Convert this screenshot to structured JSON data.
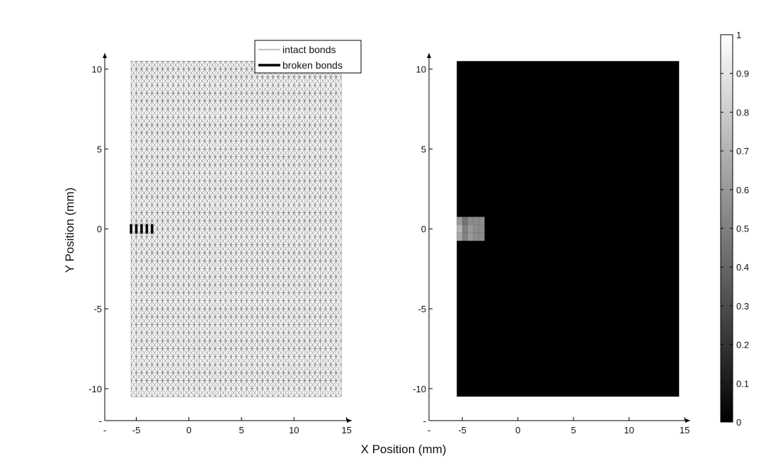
{
  "figure": {
    "xlabel": "X Position (mm)",
    "ylabel": "Y Position (mm)"
  },
  "chart_data": [
    {
      "type": "mesh",
      "panel": "left",
      "xlim": [
        -8,
        15.5
      ],
      "ylim": [
        -12,
        11
      ],
      "xticks": [
        -5,
        0,
        5,
        10,
        15
      ],
      "yticks": [
        -10,
        -5,
        0,
        5,
        10
      ],
      "xtick_labels": [
        "-5",
        "0",
        "5",
        "10",
        "15"
      ],
      "ytick_labels": [
        "-10",
        "-5",
        "0",
        "5",
        "10"
      ],
      "axis_end_labels": {
        "x_min": "-",
        "y_min": "-"
      },
      "mesh": {
        "x_range": [
          -5.5,
          14.5
        ],
        "y_range": [
          -10.5,
          10.5
        ],
        "cols": 40,
        "rows": 42
      },
      "legend": {
        "position": "top-right",
        "entries": [
          {
            "label": "intact bonds",
            "style": "thin",
            "color": "#7f7f7f"
          },
          {
            "label": "broken bonds",
            "style": "thick",
            "color": "#000000"
          }
        ]
      },
      "broken_bonds_x": [
        -5.5,
        -5.0,
        -4.5,
        -4.0,
        -3.5
      ],
      "broken_bonds_y": [
        0.0,
        0.0,
        0.0,
        0.0,
        0.0
      ],
      "grid": false
    },
    {
      "type": "heatmap",
      "panel": "right",
      "xlim": [
        -8,
        15.5
      ],
      "ylim": [
        -12,
        11
      ],
      "xticks": [
        -5,
        0,
        5,
        10,
        15
      ],
      "yticks": [
        -10,
        -5,
        0,
        5,
        10
      ],
      "xtick_labels": [
        "-5",
        "0",
        "5",
        "10",
        "15"
      ],
      "ytick_labels": [
        "-10",
        "-5",
        "0",
        "5",
        "10"
      ],
      "axis_end_labels": {
        "x_min": "-",
        "y_min": "-"
      },
      "background_value": 0,
      "region": {
        "x_range": [
          -5.5,
          14.5
        ],
        "y_range": [
          -10.5,
          10.5
        ]
      },
      "cell_size": 0.5,
      "cells": [
        {
          "x": -5.5,
          "y": 0.0,
          "value": 0.7
        },
        {
          "x": -5.0,
          "y": 0.0,
          "value": 0.5
        },
        {
          "x": -4.5,
          "y": 0.0,
          "value": 0.6
        },
        {
          "x": -4.0,
          "y": 0.0,
          "value": 0.55
        },
        {
          "x": -3.5,
          "y": 0.0,
          "value": 0.55
        },
        {
          "x": -5.5,
          "y": 0.5,
          "value": 0.6
        },
        {
          "x": -5.0,
          "y": 0.5,
          "value": 0.45
        },
        {
          "x": -4.5,
          "y": 0.5,
          "value": 0.55
        },
        {
          "x": -4.0,
          "y": 0.5,
          "value": 0.55
        },
        {
          "x": -3.5,
          "y": 0.5,
          "value": 0.55
        },
        {
          "x": -5.5,
          "y": -0.5,
          "value": 0.65
        },
        {
          "x": -5.0,
          "y": -0.5,
          "value": 0.5
        },
        {
          "x": -4.5,
          "y": -0.5,
          "value": 0.6
        },
        {
          "x": -4.0,
          "y": -0.5,
          "value": 0.55
        },
        {
          "x": -3.5,
          "y": -0.5,
          "value": 0.55
        }
      ],
      "colorbar": {
        "range": [
          0,
          1
        ],
        "ticks": [
          0,
          0.1,
          0.2,
          0.3,
          0.4,
          0.5,
          0.6,
          0.7,
          0.8,
          0.9,
          1
        ],
        "tick_labels": [
          "0",
          "0.1",
          "0.2",
          "0.3",
          "0.4",
          "0.5",
          "0.6",
          "0.7",
          "0.8",
          "0.9",
          "1"
        ],
        "colormap": "gray"
      },
      "grid": false
    }
  ]
}
